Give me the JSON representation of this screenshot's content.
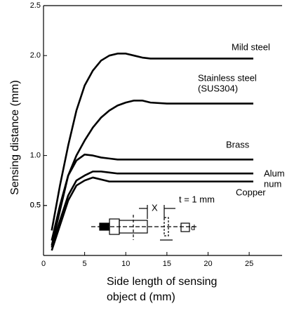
{
  "chart_data": {
    "type": "line",
    "ylabel": "Sensing distance  (mm)",
    "xlabel": [
      "Side length of sensing",
      "object d (mm)"
    ],
    "x": [
      1,
      2,
      3,
      4,
      5,
      6,
      7,
      8,
      9,
      10,
      11,
      12,
      13,
      15,
      20,
      25.5
    ],
    "series": [
      {
        "name": [
          "Mild steel"
        ],
        "color": "#000000",
        "values": [
          0.25,
          0.7,
          1.1,
          1.45,
          1.7,
          1.85,
          1.95,
          2.0,
          2.02,
          2.02,
          2.0,
          1.98,
          1.97,
          1.97,
          1.97,
          1.97
        ]
      },
      {
        "name": [
          "Stainless steel",
          "(SUS304)"
        ],
        "color": "#000000",
        "values": [
          0.15,
          0.5,
          0.8,
          1.0,
          1.15,
          1.28,
          1.38,
          1.45,
          1.5,
          1.53,
          1.55,
          1.55,
          1.53,
          1.52,
          1.52,
          1.52
        ]
      },
      {
        "name": [
          "Brass"
        ],
        "color": "#000000",
        "values": [
          0.1,
          0.45,
          0.8,
          0.95,
          1.01,
          1.0,
          0.98,
          0.97,
          0.96,
          0.96,
          0.96,
          0.96,
          0.96,
          0.96,
          0.96,
          0.96
        ]
      },
      {
        "name": [
          "Alum",
          "num"
        ],
        "color": "#000000",
        "values": [
          0.08,
          0.35,
          0.6,
          0.75,
          0.8,
          0.84,
          0.84,
          0.83,
          0.82,
          0.82,
          0.82,
          0.82,
          0.82,
          0.82,
          0.82,
          0.82
        ]
      },
      {
        "name": [
          "Copper"
        ],
        "color": "#000000",
        "values": [
          0.05,
          0.3,
          0.55,
          0.7,
          0.75,
          0.78,
          0.76,
          0.74,
          0.74,
          0.74,
          0.74,
          0.74,
          0.74,
          0.74,
          0.74,
          0.74
        ]
      }
    ],
    "xlim": [
      0,
      29
    ],
    "xticks": [
      0,
      5,
      10,
      15,
      20,
      25
    ],
    "ylim": [
      0,
      2.5
    ],
    "yticks": [
      0.5,
      {
        "value": 1,
        "label": "1.0"
      },
      0.5,
      {
        "value": 2,
        "label": "2.0"
      },
      2.5
    ],
    "annotations": {
      "thickness": "t = 1 mm",
      "distance": "X",
      "side": "d"
    }
  }
}
